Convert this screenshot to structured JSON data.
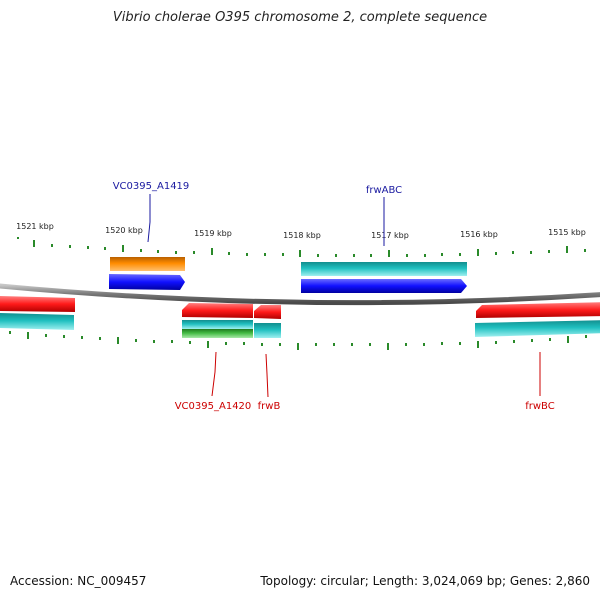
{
  "title": "Vibrio cholerae O395 chromosome 2, complete sequence",
  "footer": {
    "accession": "Accession: NC_009457",
    "stats": "Topology: circular; Length: 3,024,069 bp; Genes: 2,860"
  },
  "colors": {
    "backbone": "#808080",
    "tick": "#2a8a2a",
    "forward_label": "#1a1aa0",
    "reverse_label": "#cc0000",
    "red": "#ff1a1a",
    "blue": "#1010ff",
    "cyan": "#20c0c0",
    "orange": "#ff8c00",
    "green": "#44bb44"
  },
  "ticks": [
    "1521 kbp",
    "1520 kbp",
    "1519 kbp",
    "1518 kbp",
    "1517 kbp",
    "1516 kbp",
    "1515 kbp"
  ],
  "labels": {
    "forward": [
      "VC0395_A1419",
      "frwABC"
    ],
    "reverse": [
      "VC0395_A1420",
      "frwB",
      "frwBC"
    ]
  }
}
